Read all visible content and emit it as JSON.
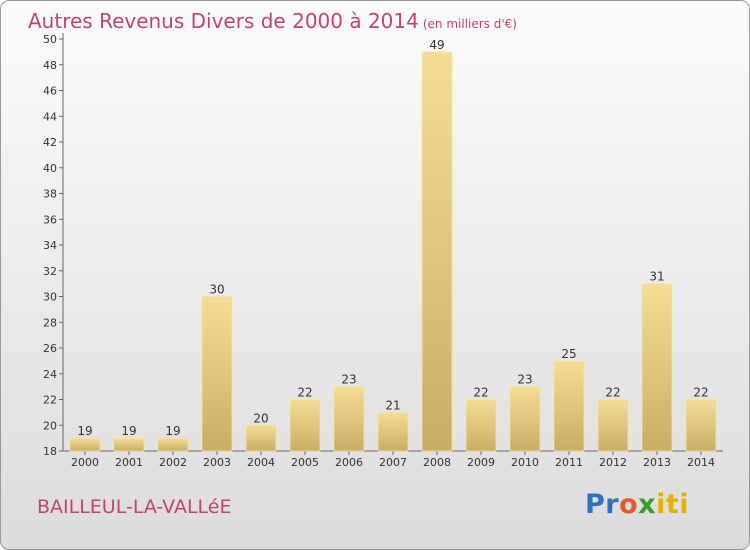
{
  "title": "Autres Revenus Divers de 2000 à 2014",
  "subtitle": "(en milliers d'€)",
  "commune": "BAILLEUL-LA-VALLéE",
  "logo": {
    "p1": "Pr",
    "p2": "o",
    "p3": "x",
    "p4": "iti"
  },
  "colors": {
    "title": "#c0446f",
    "bar_light": "#f5dd98",
    "bar_dark": "#c9ad64",
    "axis": "#666666"
  },
  "chart_data": {
    "type": "bar",
    "title": "Autres Revenus Divers de 2000 à 2014",
    "xlabel": "",
    "ylabel": "",
    "ylim": [
      18,
      50
    ],
    "yticks": [
      18,
      20,
      22,
      24,
      26,
      28,
      30,
      32,
      34,
      36,
      38,
      40,
      42,
      44,
      46,
      48,
      50
    ],
    "categories": [
      "2000",
      "2001",
      "2002",
      "2003",
      "2004",
      "2005",
      "2006",
      "2007",
      "2008",
      "2009",
      "2010",
      "2011",
      "2012",
      "2013",
      "2014"
    ],
    "values": [
      19,
      19,
      19,
      30,
      20,
      22,
      23,
      21,
      49,
      22,
      23,
      25,
      22,
      31,
      22
    ],
    "grid": false,
    "legend": "none"
  }
}
